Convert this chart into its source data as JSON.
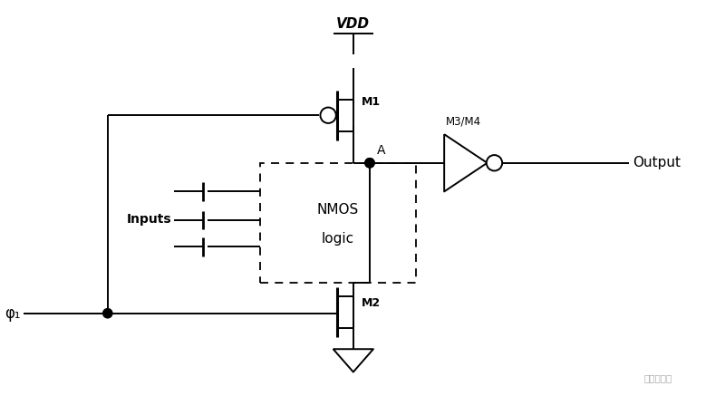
{
  "bg_color": "#ffffff",
  "line_color": "#000000",
  "text_color": "#000000",
  "figsize": [
    8.0,
    4.37
  ],
  "dpi": 100,
  "vdd_label": "VDD",
  "m1_label": "M1",
  "m2_label": "M2",
  "m3m4_label": "M3/M4",
  "output_label": "Output",
  "nmos_label1": "NMOS",
  "nmos_label2": "logic",
  "inputs_label": "Inputs",
  "phi_label": "φ₁",
  "node_a_label": "A",
  "watermark": "吴说区块链"
}
